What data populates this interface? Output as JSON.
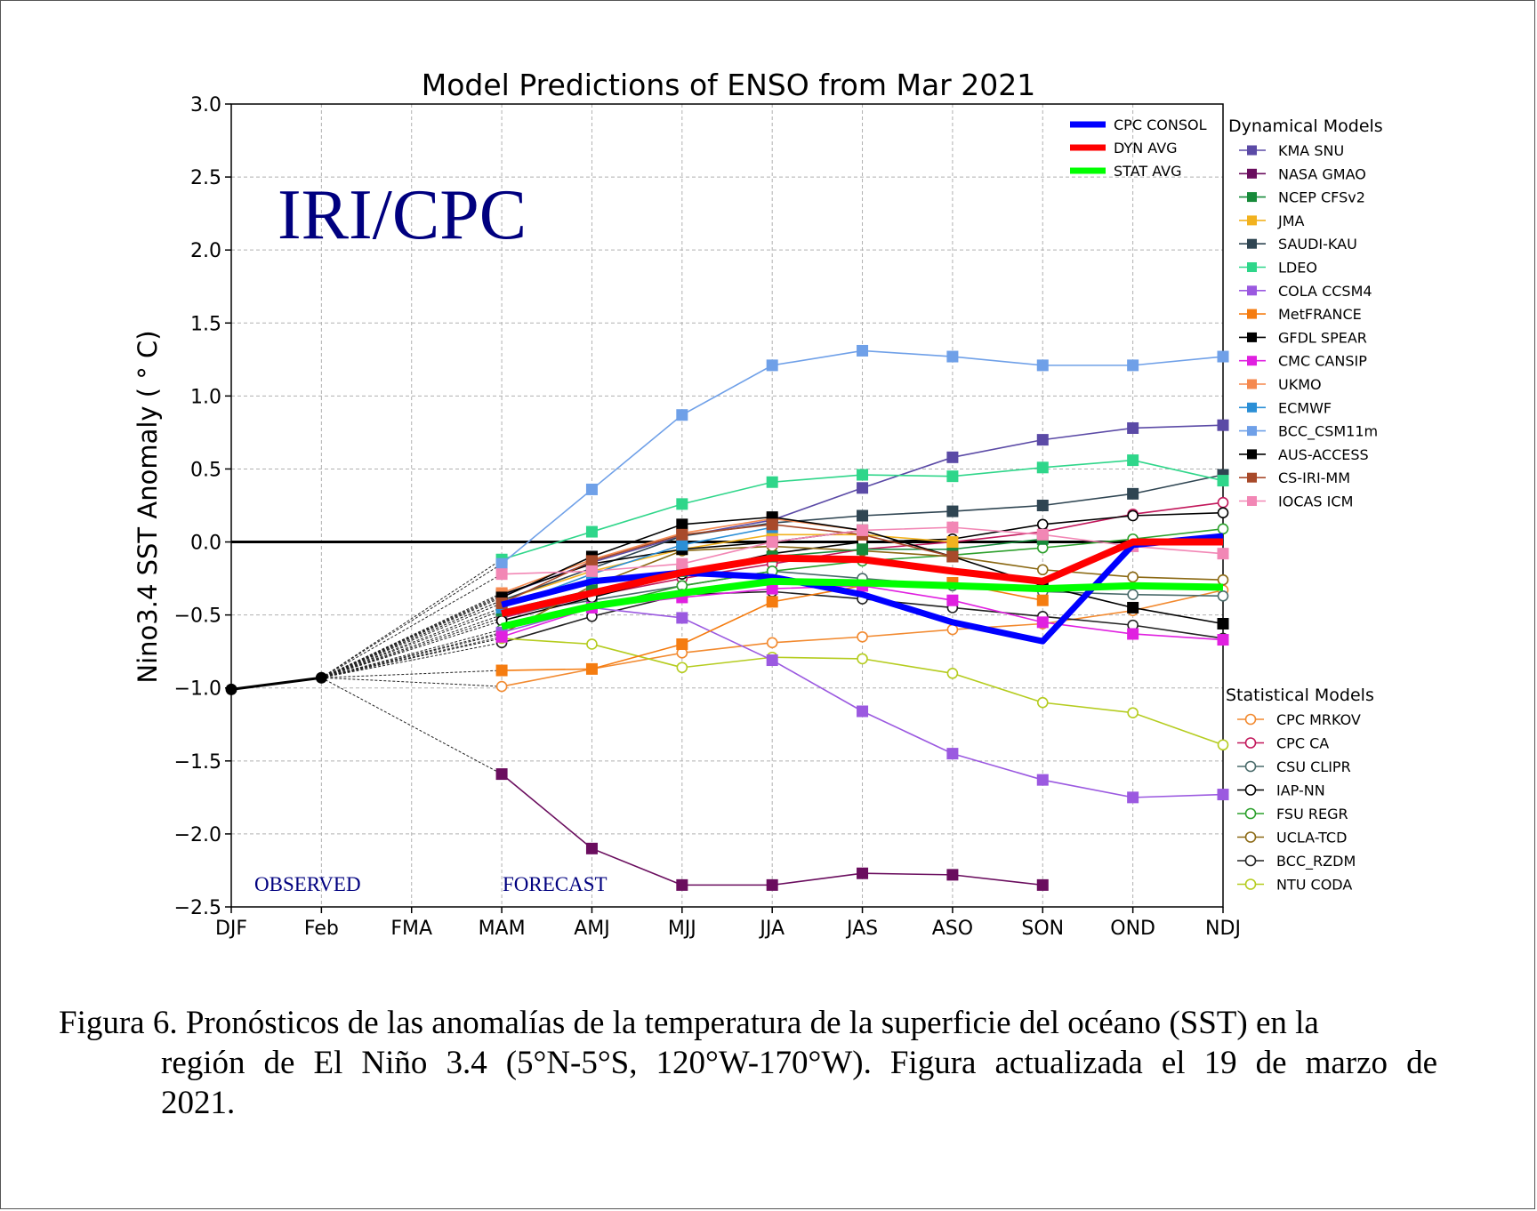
{
  "chart_data": {
    "type": "line",
    "title": "Model Predictions of ENSO from Mar 2021",
    "ylabel": "Nino3.4 SST Anomaly ( ° C)",
    "xlabel": "",
    "categories": [
      "DJF",
      "Feb",
      "FMA",
      "MAM",
      "AMJ",
      "MJJ",
      "JJA",
      "JAS",
      "ASO",
      "SON",
      "OND",
      "NDJ"
    ],
    "ylim": [
      -2.5,
      3.0
    ],
    "yticks": [
      "3.0",
      "2.5",
      "2.0",
      "1.5",
      "1.0",
      "0.5",
      "0.0",
      "−0.5",
      "−1.0",
      "−1.5",
      "−2.0",
      "−2.5"
    ],
    "grid": true,
    "watermark": "IRI/CPC",
    "annotations": {
      "observed": "OBSERVED",
      "forecast": "FORECAST"
    },
    "observed": {
      "x": [
        "DJF",
        "Feb"
      ],
      "values": [
        -1.01,
        -0.93
      ],
      "color": "#000000"
    },
    "averages": [
      {
        "name": "CPC CONSOL",
        "color": "#0000ff",
        "values": [
          -0.43,
          -0.27,
          -0.21,
          -0.24,
          -0.36,
          -0.55,
          -0.68,
          -0.02,
          0.04
        ]
      },
      {
        "name": "DYN AVG",
        "color": "#ff0000",
        "values": [
          -0.49,
          -0.35,
          -0.21,
          -0.11,
          -0.12,
          -0.2,
          -0.27,
          0.0,
          0.0
        ]
      },
      {
        "name": "STAT AVG",
        "color": "#00ff00",
        "values": [
          -0.58,
          -0.44,
          -0.35,
          -0.27,
          -0.28,
          -0.3,
          -0.32,
          -0.3,
          -0.31
        ]
      }
    ],
    "dynamical_title": "Dynamical Models",
    "dynamical": [
      {
        "name": "KMA SNU",
        "color": "#5b4aa6",
        "values": [
          -0.37,
          -0.14,
          0.04,
          0.15,
          0.37,
          0.58,
          0.7,
          0.78,
          0.8
        ]
      },
      {
        "name": "NASA GMAO",
        "color": "#6a0d5e",
        "values": [
          -1.59,
          -2.1,
          -2.35,
          -2.35,
          -2.27,
          -2.28,
          -2.35
        ]
      },
      {
        "name": "NCEP CFSv2",
        "color": "#178a3a",
        "values": [
          -0.47,
          -0.33,
          -0.2,
          -0.1,
          -0.05,
          -0.05,
          0.02
        ]
      },
      {
        "name": "JMA",
        "color": "#f2b21f",
        "values": [
          -0.4,
          -0.2,
          -0.05,
          0.05,
          0.05,
          0.0
        ]
      },
      {
        "name": "SAUDI-KAU",
        "color": "#2f4552",
        "values": [
          -0.4,
          -0.18,
          0.04,
          0.13,
          0.18,
          0.21,
          0.25,
          0.33,
          0.46
        ]
      },
      {
        "name": "LDEO",
        "color": "#2fd68a",
        "values": [
          -0.12,
          0.07,
          0.26,
          0.41,
          0.46,
          0.45,
          0.51,
          0.56,
          0.42
        ]
      },
      {
        "name": "COLA CCSM4",
        "color": "#9b59e0",
        "values": [
          -0.62,
          -0.45,
          -0.52,
          -0.81,
          -1.16,
          -1.45,
          -1.63,
          -1.75,
          -1.73
        ]
      },
      {
        "name": "MetFRANCE",
        "color": "#f57c10",
        "values": [
          -0.88,
          -0.87,
          -0.7,
          -0.41,
          -0.3,
          -0.28,
          -0.4
        ]
      },
      {
        "name": "GFDL SPEAR",
        "color": "#000000",
        "values": [
          -0.36,
          -0.15,
          -0.05,
          0.0,
          0.08,
          -0.1,
          -0.3,
          -0.45,
          -0.56
        ]
      },
      {
        "name": "CMC CANSIP",
        "color": "#e020e0",
        "values": [
          -0.65,
          -0.45,
          -0.38,
          -0.32,
          -0.3,
          -0.4,
          -0.55,
          -0.63,
          -0.67
        ]
      },
      {
        "name": "UKMO",
        "color": "#f5894f",
        "values": [
          -0.35,
          -0.12,
          0.06,
          0.16,
          0.08
        ]
      },
      {
        "name": "ECMWF",
        "color": "#2b8fd6",
        "values": [
          -0.45,
          -0.22,
          -0.02,
          0.1
        ]
      },
      {
        "name": "BCC_CSM11m",
        "color": "#6fa0e8",
        "values": [
          -0.15,
          0.36,
          0.87,
          1.21,
          1.31,
          1.27,
          1.21,
          1.21,
          1.27
        ]
      },
      {
        "name": "AUS-ACCESS",
        "color": "#000000",
        "values": [
          -0.38,
          -0.1,
          0.12,
          0.17,
          0.08
        ]
      },
      {
        "name": "CS-IRI-MM",
        "color": "#a84a2a",
        "values": [
          -0.42,
          -0.13,
          0.05,
          0.12,
          0.05,
          -0.1
        ]
      },
      {
        "name": "IOCAS ICM",
        "color": "#f287b5",
        "values": [
          -0.22,
          -0.2,
          -0.15,
          0.0,
          0.08,
          0.1,
          0.05,
          -0.03,
          -0.08
        ]
      }
    ],
    "statistical_title": "Statistical Models",
    "statistical": [
      {
        "name": "CPC MRKOV",
        "color": "#f28a30",
        "values": [
          -0.99,
          -0.87,
          -0.76,
          -0.69,
          -0.65,
          -0.6,
          -0.56,
          -0.47,
          -0.33
        ]
      },
      {
        "name": "CPC CA",
        "color": "#c2185b",
        "values": [
          -0.52,
          -0.37,
          -0.25,
          -0.15,
          -0.05,
          0.0,
          0.07,
          0.19,
          0.27
        ]
      },
      {
        "name": "CSU CLIPR",
        "color": "#4a6b6b",
        "values": [
          -0.5,
          -0.4,
          -0.3,
          -0.2,
          -0.25,
          -0.3,
          -0.34,
          -0.36,
          -0.37
        ]
      },
      {
        "name": "IAP-NN",
        "color": "#000000",
        "values": [
          -0.54,
          -0.38,
          -0.22,
          -0.08,
          0.0,
          0.02,
          0.12,
          0.18,
          0.2
        ]
      },
      {
        "name": "FSU REGR",
        "color": "#2ca02c",
        "values": [
          -0.6,
          -0.45,
          -0.3,
          -0.2,
          -0.13,
          -0.09,
          -0.04,
          0.02,
          0.09
        ]
      },
      {
        "name": "UCLA-TCD",
        "color": "#8b6914",
        "values": [
          -0.63,
          -0.3,
          -0.06,
          -0.03,
          -0.06,
          -0.1,
          -0.19,
          -0.24,
          -0.26
        ]
      },
      {
        "name": "BCC_RZDM",
        "color": "#222222",
        "values": [
          -0.69,
          -0.51,
          -0.36,
          -0.34,
          -0.39,
          -0.45,
          -0.51,
          -0.57,
          -0.66
        ]
      },
      {
        "name": "NTU CODA",
        "color": "#b5cc1f",
        "values": [
          -0.66,
          -0.7,
          -0.86,
          -0.79,
          -0.8,
          -0.9,
          -1.1,
          -1.17,
          -1.39
        ]
      }
    ]
  },
  "caption": {
    "line1": "Figura 6. Pronósticos de las anomalías de la temperatura de la superficie del océano (SST) en la",
    "line2": "región de El Niño 3.4 (5°N-5°S, 120°W-170°W). Figura actualizada el 19 de marzo de",
    "line3": "2021."
  }
}
